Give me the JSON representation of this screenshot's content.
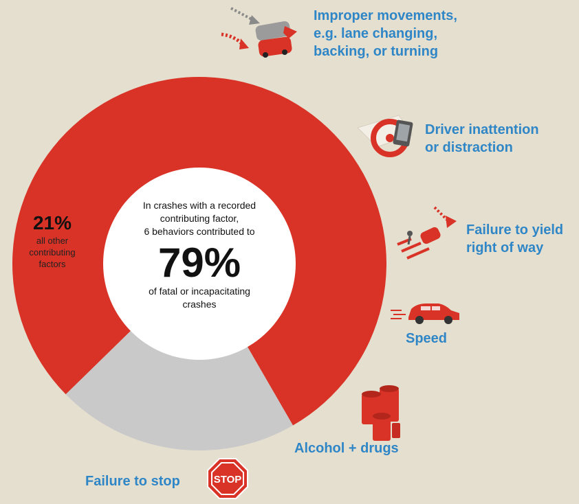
{
  "chart_data": {
    "type": "pie",
    "slices": [
      {
        "label": "6 behaviors",
        "value": 79,
        "color": "#d93226"
      },
      {
        "label": "all other contributing factors",
        "value": 21,
        "color": "#c9c9c9"
      }
    ]
  },
  "center": {
    "line1": "In crashes with a recorded",
    "line2": "contributing factor,",
    "line3": "6 behaviors contributed to",
    "percent": "79%",
    "line4": "of fatal or incapacitating",
    "line5": "crashes"
  },
  "other": {
    "percent": "21%",
    "line1": "all other",
    "line2": "contributing",
    "line3": "factors"
  },
  "behaviors": {
    "improper": [
      "Improper movements,",
      "e.g. lane changing,",
      "backing, or turning"
    ],
    "inattention": [
      "Driver inattention",
      "or distraction"
    ],
    "yield": [
      "Failure to yield",
      "right of way"
    ],
    "speed": [
      "Speed"
    ],
    "alcohol": [
      "Alcohol + drugs"
    ],
    "stop": [
      "Failure to stop"
    ]
  },
  "icons": {
    "improper": "improper-movement-icon",
    "inattention": "phone-distraction-icon",
    "yield": "yield-crosswalk-icon",
    "speed": "speeding-car-icon",
    "alcohol": "cans-bottle-icon",
    "stop": "stop-sign-icon",
    "stop_text": "STOP"
  },
  "colors": {
    "accent": "#d93226",
    "label": "#2f86c7",
    "other": "#c9c9c9",
    "background": "#e5dfcf"
  }
}
